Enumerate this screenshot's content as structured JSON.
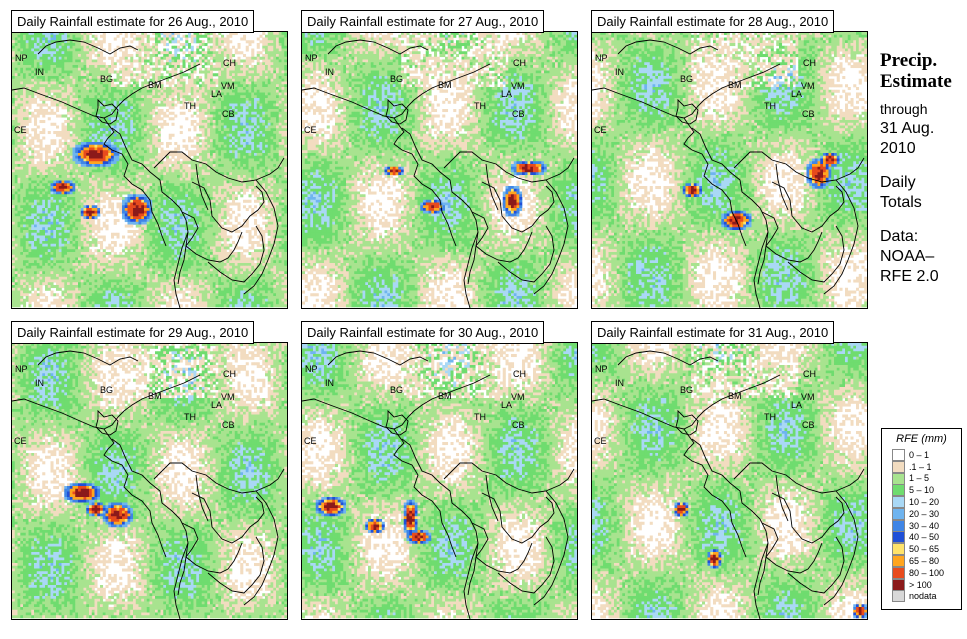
{
  "panels": [
    {
      "title": "Daily Rainfall estimate for  26 Aug., 2010",
      "hot": [
        [
          30,
          44,
          9,
          5
        ],
        [
          18,
          56,
          5,
          3
        ],
        [
          45,
          64,
          6,
          6
        ],
        [
          28,
          65,
          4,
          3
        ]
      ]
    },
    {
      "title": "Daily Rainfall estimate for  27 Aug., 2010",
      "hot": [
        [
          47,
          63,
          5,
          3
        ],
        [
          82,
          49,
          7,
          3
        ],
        [
          76,
          61,
          4,
          6
        ],
        [
          33,
          50,
          4,
          2
        ]
      ]
    },
    {
      "title": "Daily Rainfall estimate for  28 Aug., 2010",
      "hot": [
        [
          52,
          68,
          6,
          4
        ],
        [
          82,
          51,
          5,
          6
        ],
        [
          36,
          57,
          4,
          3
        ],
        [
          86,
          46,
          4,
          3
        ]
      ]
    },
    {
      "title": "Daily Rainfall estimate for  29 Aug., 2010",
      "hot": [
        [
          25,
          54,
          7,
          4
        ],
        [
          38,
          62,
          6,
          5
        ],
        [
          30,
          60,
          4,
          3
        ]
      ]
    },
    {
      "title": "Daily Rainfall estimate for  30 Aug., 2010",
      "hot": [
        [
          10,
          59,
          6,
          4
        ],
        [
          42,
          70,
          5,
          3
        ],
        [
          39,
          63,
          3,
          7
        ],
        [
          26,
          66,
          4,
          3
        ]
      ]
    },
    {
      "title": "Daily Rainfall estimate for  31 Aug., 2010",
      "hot": [
        [
          44,
          78,
          3,
          4
        ],
        [
          97,
          97,
          3,
          3
        ],
        [
          32,
          60,
          3,
          3
        ]
      ]
    }
  ],
  "countries": [
    {
      "code": "NP"
    },
    {
      "code": "IN"
    },
    {
      "code": "BG"
    },
    {
      "code": "BM"
    },
    {
      "code": "CH"
    },
    {
      "code": "VM"
    },
    {
      "code": "LA"
    },
    {
      "code": "TH"
    },
    {
      "code": "CB"
    },
    {
      "code": "CE"
    }
  ],
  "side": {
    "heading_line1": "Precip.",
    "heading_line2": "Estimate",
    "through": "through",
    "date_line1": "31 Aug.",
    "date_line2": "2010",
    "daily_line1": "Daily",
    "daily_line2": "Totals",
    "data_line1": "Data:",
    "data_line2": "NOAA–",
    "data_line3": "RFE 2.0"
  },
  "legend": {
    "title": "RFE (mm)",
    "items": [
      {
        "label": "0 – 1",
        "color": "#ffffff"
      },
      {
        "label": ".1 – 1",
        "color": "#f2dcc0"
      },
      {
        "label": "1 – 5",
        "color": "#a8e38f"
      },
      {
        "label": "5 – 10",
        "color": "#6fdc6f"
      },
      {
        "label": "10 – 20",
        "color": "#a9d8f5"
      },
      {
        "label": "20 – 30",
        "color": "#6fb4ef"
      },
      {
        "label": "30 – 40",
        "color": "#3f85e6"
      },
      {
        "label": "40 – 50",
        "color": "#1f4fd8"
      },
      {
        "label": "50 – 65",
        "color": "#ffe36a"
      },
      {
        "label": "65 – 80",
        "color": "#ffa51f"
      },
      {
        "label": "80 – 100",
        "color": "#e84b1d"
      },
      {
        "label": "> 100",
        "color": "#8b1a1a"
      },
      {
        "label": "nodata",
        "color": "#d8d8d8"
      }
    ]
  }
}
